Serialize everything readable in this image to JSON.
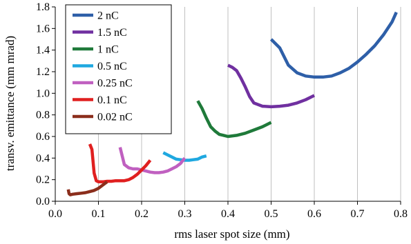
{
  "chart_data": {
    "type": "line",
    "xlabel": "rms laser spot size (mm)",
    "ylabel": "transv. emittance (mm mrad)",
    "xlim": [
      0.0,
      0.8
    ],
    "ylim": [
      0.0,
      1.8
    ],
    "xticks": [
      "0.0",
      "0.1",
      "0.2",
      "0.3",
      "0.4",
      "0.5",
      "0.6",
      "0.7",
      "0.8"
    ],
    "yticks": [
      "0.0",
      "0.2",
      "0.4",
      "0.6",
      "0.8",
      "1.0",
      "1.2",
      "1.4",
      "1.6",
      "1.8"
    ],
    "grid": "vertical",
    "legend_position": "top-left",
    "series": [
      {
        "name": "2 nC",
        "color": "#2e5fa8",
        "x": [
          0.5,
          0.52,
          0.54,
          0.56,
          0.58,
          0.6,
          0.62,
          0.64,
          0.66,
          0.68,
          0.7,
          0.72,
          0.74,
          0.76,
          0.78,
          0.79
        ],
        "y": [
          1.5,
          1.42,
          1.26,
          1.19,
          1.16,
          1.15,
          1.15,
          1.16,
          1.19,
          1.23,
          1.29,
          1.36,
          1.44,
          1.54,
          1.66,
          1.75
        ]
      },
      {
        "name": "1.5 nC",
        "color": "#7030a0",
        "x": [
          0.4,
          0.41,
          0.42,
          0.43,
          0.44,
          0.45,
          0.46,
          0.48,
          0.5,
          0.52,
          0.54,
          0.56,
          0.58,
          0.6
        ],
        "y": [
          1.26,
          1.24,
          1.21,
          1.14,
          1.06,
          0.97,
          0.91,
          0.88,
          0.875,
          0.88,
          0.89,
          0.91,
          0.94,
          0.98
        ]
      },
      {
        "name": "1 nC",
        "color": "#1f7a3a",
        "x": [
          0.33,
          0.34,
          0.35,
          0.36,
          0.37,
          0.38,
          0.39,
          0.4,
          0.42,
          0.44,
          0.46,
          0.48,
          0.5
        ],
        "y": [
          0.93,
          0.86,
          0.77,
          0.69,
          0.65,
          0.62,
          0.61,
          0.6,
          0.61,
          0.63,
          0.66,
          0.69,
          0.73
        ]
      },
      {
        "name": "0.5 nC",
        "color": "#1fa8e0",
        "x": [
          0.25,
          0.26,
          0.27,
          0.28,
          0.29,
          0.3,
          0.31,
          0.32,
          0.33,
          0.34,
          0.35
        ],
        "y": [
          0.45,
          0.43,
          0.41,
          0.39,
          0.385,
          0.38,
          0.38,
          0.385,
          0.39,
          0.41,
          0.42
        ]
      },
      {
        "name": "0.25 nC",
        "color": "#c060c0",
        "x": [
          0.15,
          0.155,
          0.16,
          0.17,
          0.18,
          0.19,
          0.2,
          0.21,
          0.22,
          0.23,
          0.24,
          0.25,
          0.26,
          0.27,
          0.28,
          0.29,
          0.3
        ],
        "y": [
          0.5,
          0.42,
          0.34,
          0.31,
          0.3,
          0.3,
          0.29,
          0.28,
          0.27,
          0.265,
          0.265,
          0.27,
          0.28,
          0.3,
          0.32,
          0.35,
          0.4
        ]
      },
      {
        "name": "0.1 nC",
        "color": "#e02020",
        "x": [
          0.08,
          0.085,
          0.09,
          0.095,
          0.1,
          0.11,
          0.12,
          0.13,
          0.14,
          0.15,
          0.16,
          0.17,
          0.18,
          0.19,
          0.2,
          0.21,
          0.22
        ],
        "y": [
          0.53,
          0.48,
          0.26,
          0.19,
          0.18,
          0.18,
          0.185,
          0.185,
          0.19,
          0.19,
          0.19,
          0.2,
          0.22,
          0.25,
          0.29,
          0.33,
          0.38
        ]
      },
      {
        "name": "0.02 nC",
        "color": "#8b2e1c",
        "x": [
          0.03,
          0.032,
          0.035,
          0.04,
          0.05,
          0.06,
          0.07,
          0.08,
          0.09,
          0.1,
          0.11,
          0.12
        ],
        "y": [
          0.11,
          0.07,
          0.06,
          0.065,
          0.07,
          0.075,
          0.08,
          0.09,
          0.1,
          0.12,
          0.15,
          0.18
        ]
      }
    ]
  }
}
